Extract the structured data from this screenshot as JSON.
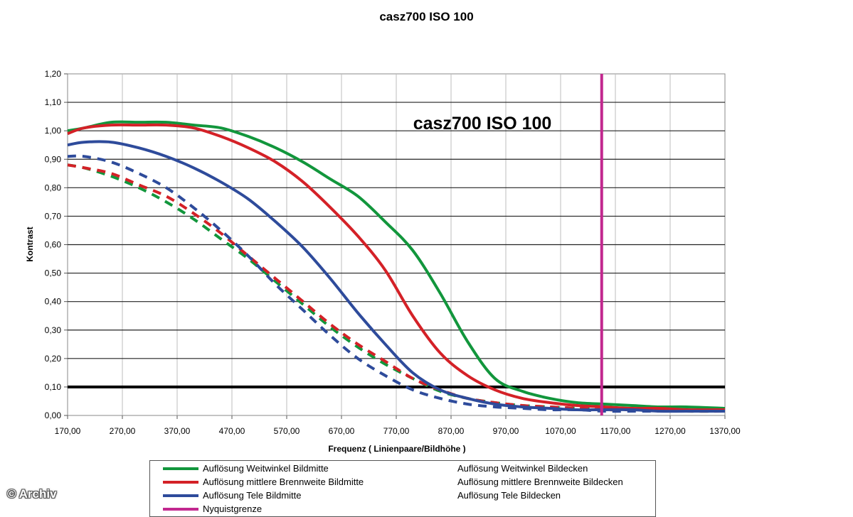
{
  "chart_data": {
    "type": "line",
    "title": "casz700 ISO 100",
    "inner_title": "casz700 ISO 100",
    "xlabel": "Frequenz ( Linienpaare/Bildhöhe )",
    "ylabel": "Kontrast",
    "xlim": [
      170,
      1370
    ],
    "ylim": [
      0,
      1.2
    ],
    "x_ticks": [
      "170,00",
      "270,00",
      "370,00",
      "470,00",
      "570,00",
      "670,00",
      "770,00",
      "870,00",
      "970,00",
      "1070,00",
      "1170,00",
      "1270,00",
      "1370,00"
    ],
    "y_ticks": [
      "0,00",
      "0,10",
      "0,20",
      "0,30",
      "0,40",
      "0,50",
      "0,60",
      "0,70",
      "0,80",
      "0,90",
      "1,00",
      "1,10",
      "1,20"
    ],
    "grid": true,
    "legend_position": "bottom",
    "reference_line": {
      "y": 0.1,
      "color": "#000000"
    },
    "nyquist_x": 1145,
    "series": [
      {
        "name": "Auflösung Weitwinkel Bildmitte",
        "color": "#12963c",
        "dashed": false,
        "x": [
          170,
          200,
          250,
          300,
          350,
          400,
          450,
          500,
          550,
          600,
          650,
          700,
          750,
          800,
          850,
          900,
          950,
          1000,
          1050,
          1100,
          1150,
          1200,
          1250,
          1300,
          1370
        ],
        "y": [
          1.0,
          1.01,
          1.03,
          1.03,
          1.03,
          1.02,
          1.01,
          0.98,
          0.94,
          0.89,
          0.83,
          0.77,
          0.68,
          0.58,
          0.43,
          0.26,
          0.13,
          0.085,
          0.06,
          0.045,
          0.04,
          0.035,
          0.03,
          0.03,
          0.025
        ]
      },
      {
        "name": "Auflösung mittlere Brennweite Bildmitte",
        "color": "#d42127",
        "dashed": false,
        "x": [
          170,
          200,
          250,
          300,
          350,
          400,
          450,
          500,
          550,
          600,
          650,
          700,
          750,
          800,
          850,
          900,
          950,
          1000,
          1050,
          1100,
          1150,
          1200,
          1250,
          1300,
          1370
        ],
        "y": [
          0.99,
          1.01,
          1.02,
          1.02,
          1.02,
          1.01,
          0.98,
          0.94,
          0.89,
          0.82,
          0.73,
          0.63,
          0.51,
          0.35,
          0.22,
          0.14,
          0.09,
          0.06,
          0.045,
          0.035,
          0.03,
          0.025,
          0.025,
          0.02,
          0.02
        ]
      },
      {
        "name": "Auflösung Tele Bildmitte",
        "color": "#2e4b9b",
        "dashed": false,
        "x": [
          170,
          200,
          250,
          300,
          350,
          400,
          450,
          500,
          550,
          600,
          650,
          700,
          750,
          800,
          850,
          900,
          950,
          1000,
          1050,
          1100,
          1150,
          1200,
          1250,
          1300,
          1370
        ],
        "y": [
          0.95,
          0.96,
          0.96,
          0.94,
          0.91,
          0.87,
          0.82,
          0.76,
          0.68,
          0.59,
          0.48,
          0.36,
          0.25,
          0.15,
          0.09,
          0.06,
          0.04,
          0.03,
          0.025,
          0.02,
          0.02,
          0.02,
          0.015,
          0.015,
          0.015
        ]
      },
      {
        "name": "Nyquistgrenze",
        "color": "#c2288f",
        "dashed": false,
        "x": [
          1145,
          1145
        ],
        "y": [
          0,
          1.2
        ]
      },
      {
        "name": "Auflösung Weitwinkel Bildecken",
        "color": "#12963c",
        "dashed": true,
        "x": [
          170,
          200,
          250,
          300,
          350,
          400,
          450,
          500,
          550,
          600,
          650,
          700,
          750,
          800,
          850,
          900,
          950,
          1000,
          1050,
          1100,
          1150,
          1200,
          1250,
          1300,
          1370
        ],
        "y": [
          0.88,
          0.87,
          0.84,
          0.8,
          0.75,
          0.69,
          0.62,
          0.55,
          0.47,
          0.39,
          0.31,
          0.24,
          0.18,
          0.13,
          0.085,
          0.06,
          0.045,
          0.035,
          0.03,
          0.025,
          0.02,
          0.02,
          0.02,
          0.015,
          0.015
        ]
      },
      {
        "name": "Auflösung mittlere Brennweite Bildecken",
        "color": "#d42127",
        "dashed": true,
        "x": [
          170,
          200,
          250,
          300,
          350,
          400,
          450,
          500,
          550,
          600,
          650,
          700,
          750,
          800,
          850,
          900,
          950,
          1000,
          1050,
          1100,
          1150,
          1200,
          1250,
          1300,
          1370
        ],
        "y": [
          0.88,
          0.87,
          0.85,
          0.81,
          0.77,
          0.71,
          0.64,
          0.56,
          0.48,
          0.4,
          0.32,
          0.25,
          0.19,
          0.13,
          0.09,
          0.06,
          0.045,
          0.035,
          0.03,
          0.025,
          0.02,
          0.02,
          0.02,
          0.015,
          0.015
        ]
      },
      {
        "name": "Auflösung Tele Bildecken",
        "color": "#2e4b9b",
        "dashed": true,
        "x": [
          170,
          200,
          250,
          300,
          350,
          400,
          450,
          500,
          550,
          600,
          650,
          700,
          750,
          800,
          850,
          900,
          950,
          1000,
          1050,
          1100,
          1150,
          1200,
          1250,
          1300,
          1370
        ],
        "y": [
          0.91,
          0.91,
          0.89,
          0.85,
          0.8,
          0.73,
          0.65,
          0.56,
          0.46,
          0.37,
          0.28,
          0.2,
          0.14,
          0.09,
          0.06,
          0.04,
          0.03,
          0.025,
          0.02,
          0.02,
          0.015,
          0.015,
          0.015,
          0.015,
          0.015
        ]
      }
    ]
  },
  "watermark": "© Archiv"
}
